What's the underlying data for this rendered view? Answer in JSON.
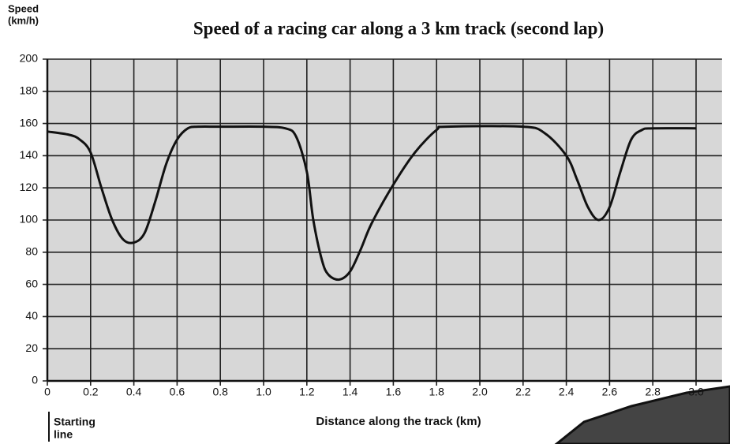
{
  "chart_data": {
    "type": "line",
    "title": "Speed of a racing car along a 3 km track (second lap)",
    "ylabel_lines": [
      "Speed",
      "(km/h)"
    ],
    "xlabel": "Distance along the track (km)",
    "annotation_lines": [
      "Starting",
      "line"
    ],
    "x": [
      0,
      0.1,
      0.15,
      0.2,
      0.25,
      0.3,
      0.35,
      0.4,
      0.45,
      0.5,
      0.55,
      0.6,
      0.65,
      0.7,
      0.8,
      1.0,
      1.1,
      1.15,
      1.2,
      1.23,
      1.27,
      1.3,
      1.35,
      1.4,
      1.45,
      1.5,
      1.6,
      1.7,
      1.8,
      1.85,
      2.2,
      2.3,
      2.4,
      2.45,
      2.5,
      2.55,
      2.6,
      2.65,
      2.7,
      2.75,
      2.8,
      3.0
    ],
    "series": [
      {
        "color": "#111111",
        "values": [
          155,
          153,
          150,
          142,
          120,
          100,
          88,
          86,
          92,
          112,
          135,
          150,
          157,
          158,
          158,
          158,
          157,
          152,
          130,
          100,
          75,
          66,
          63,
          68,
          82,
          98,
          122,
          142,
          156,
          158,
          158,
          154,
          140,
          125,
          108,
          100,
          108,
          130,
          150,
          156,
          157,
          157
        ]
      }
    ],
    "xlim": [
      0,
      3.12
    ],
    "ylim": [
      0,
      200
    ],
    "xticks": [
      0,
      0.2,
      0.4,
      0.6,
      0.8,
      {
        "value": 1.0,
        "label": "1.0"
      },
      1.2,
      1.4,
      1.6,
      1.8,
      {
        "value": 2.0,
        "label": "2.0"
      },
      2.2,
      2.4,
      2.6,
      2.8,
      {
        "value": 3.0,
        "label": "3.0"
      }
    ],
    "yticks": [
      0,
      20,
      40,
      60,
      80,
      100,
      120,
      140,
      160,
      180,
      200
    ],
    "grid": true
  }
}
